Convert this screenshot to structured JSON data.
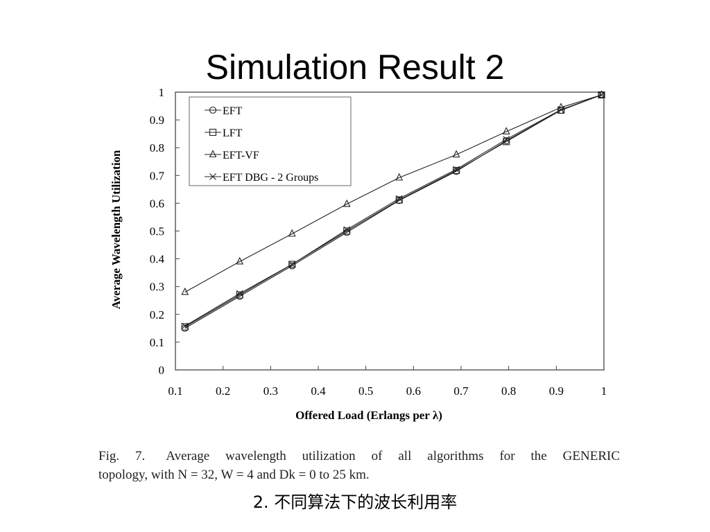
{
  "slide": {
    "title": "Simulation Result 2",
    "caption_fig_label": "Fig. 7.",
    "caption_line1": "Average wavelength utilization of all algorithms for the GENERIC",
    "caption_line2": "topology, with N = 32, W = 4 and Dk = 0 to 25 km.",
    "subcaption": "2. 不同算法下的波长利用率"
  },
  "chart_data": {
    "type": "line",
    "title": "",
    "xlabel": "Offered Load (Erlangs per λ)",
    "ylabel": "Average Wavelength Utilization",
    "xlim": [
      0.1,
      1
    ],
    "ylim": [
      0,
      1
    ],
    "x_ticks": [
      "0.1",
      "0.2",
      "0.3",
      "0.4",
      "0.5",
      "0.6",
      "0.7",
      "0.8",
      "0.9",
      "1"
    ],
    "y_ticks": [
      "0",
      "0.1",
      "0.2",
      "0.3",
      "0.4",
      "0.5",
      "0.6",
      "0.7",
      "0.8",
      "0.9",
      "1"
    ],
    "grid": false,
    "legend_position": "top-left",
    "x": [
      0.12,
      0.235,
      0.345,
      0.46,
      0.57,
      0.69,
      0.795,
      0.91,
      0.995
    ],
    "series": [
      {
        "name": "EFT",
        "marker": "circle",
        "values": [
          0.15,
          0.265,
          0.375,
          0.495,
          0.61,
          0.715,
          0.825,
          0.935,
          0.99
        ]
      },
      {
        "name": "LFT",
        "marker": "square",
        "values": [
          0.155,
          0.27,
          0.38,
          0.5,
          0.612,
          0.718,
          0.822,
          0.935,
          0.99
        ]
      },
      {
        "name": "EFT-VF",
        "marker": "triangle",
        "values": [
          0.28,
          0.39,
          0.49,
          0.597,
          0.692,
          0.775,
          0.858,
          0.945,
          0.99
        ]
      },
      {
        "name": "EFT DBG - 2 Groups",
        "marker": "x",
        "values": [
          0.158,
          0.275,
          0.38,
          0.505,
          0.617,
          0.722,
          0.83,
          0.937,
          0.99
        ]
      }
    ]
  }
}
